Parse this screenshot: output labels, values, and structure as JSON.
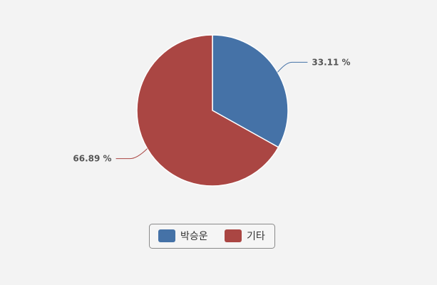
{
  "chart_data": {
    "type": "pie",
    "slices": [
      {
        "label": "박승운",
        "value": 33.11,
        "display": "33.11 %",
        "color": "#4572a7"
      },
      {
        "label": "기타",
        "value": 66.89,
        "display": "66.89 %",
        "color": "#aa4643"
      }
    ],
    "legend": "bottom-center"
  }
}
